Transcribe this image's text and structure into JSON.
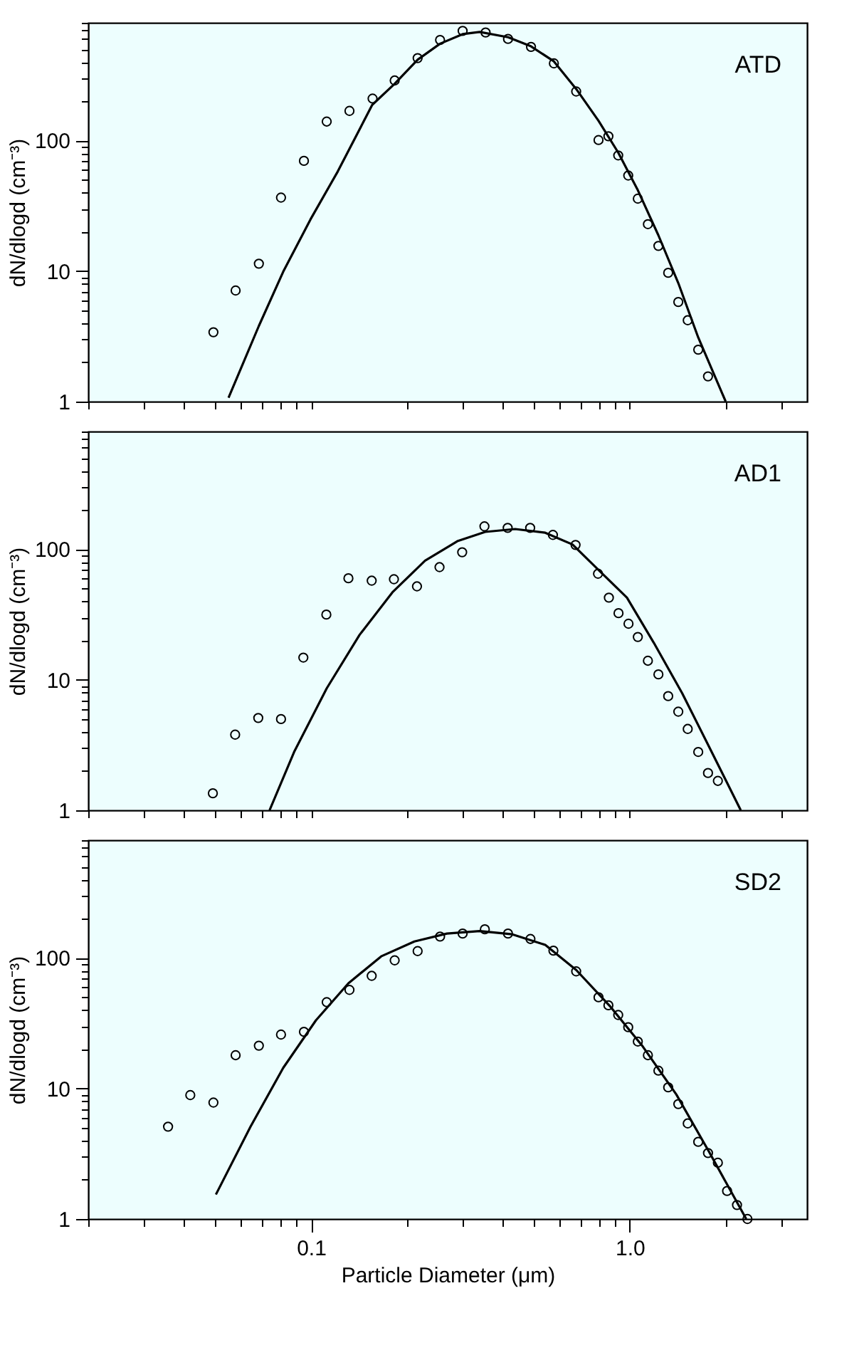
{
  "chart_data": [
    {
      "type": "scatter",
      "ylabel": "dN/dlogd (cm⁻³)",
      "annotations": [
        "ATD"
      ],
      "log": "xy",
      "grid": false,
      "tick_labels": "y",
      "xlim": [
        0.02,
        3.6
      ],
      "ylim": [
        1,
        800
      ],
      "xticks": [
        {
          "value": 0.02,
          "label": null
        },
        {
          "value": 0.03,
          "label": null
        },
        {
          "value": 0.04,
          "label": null
        },
        {
          "value": 0.05,
          "label": null
        },
        {
          "value": 0.06,
          "label": null
        },
        {
          "value": 0.07,
          "label": null
        },
        {
          "value": 0.08,
          "label": null
        },
        {
          "value": 0.09,
          "label": null
        },
        {
          "value": 0.1,
          "label": null
        },
        {
          "value": 0.2,
          "label": null
        },
        {
          "value": 0.3,
          "label": null
        },
        {
          "value": 0.4,
          "label": null
        },
        {
          "value": 0.5,
          "label": null
        },
        {
          "value": 0.6,
          "label": null
        },
        {
          "value": 0.7,
          "label": null
        },
        {
          "value": 0.8,
          "label": null
        },
        {
          "value": 0.9,
          "label": null
        },
        {
          "value": 1,
          "label": null
        },
        {
          "value": 2,
          "label": null
        },
        {
          "value": 3,
          "label": null
        }
      ],
      "yticks": [
        1,
        {
          "value": 2,
          "label": null
        },
        {
          "value": 3,
          "label": null
        },
        {
          "value": 4,
          "label": null
        },
        {
          "value": 5,
          "label": null
        },
        {
          "value": 6,
          "label": null
        },
        {
          "value": 7,
          "label": null
        },
        {
          "value": 8,
          "label": null
        },
        {
          "value": 9,
          "label": null
        },
        10,
        {
          "value": 20,
          "label": null
        },
        {
          "value": 30,
          "label": null
        },
        {
          "value": 40,
          "label": null
        },
        {
          "value": 50,
          "label": null
        },
        {
          "value": 60,
          "label": null
        },
        {
          "value": 70,
          "label": null
        },
        {
          "value": 80,
          "label": null
        },
        {
          "value": 90,
          "label": null
        },
        100,
        {
          "value": 200,
          "label": null
        },
        {
          "value": 300,
          "label": null
        },
        {
          "value": 400,
          "label": null
        },
        {
          "value": 500,
          "label": null
        },
        {
          "value": 600,
          "label": null
        },
        {
          "value": 700,
          "label": null
        },
        {
          "value": 800,
          "label": null
        }
      ],
      "series": [
        {
          "marker": "circle",
          "color": "#000000",
          "x": [
            0.0494,
            0.058,
            0.0686,
            0.0805,
            0.095,
            0.112,
            0.132,
            0.156,
            0.183,
            0.216,
            0.254,
            0.299,
            0.353,
            0.415,
            0.49,
            0.578,
            0.679,
            0.798,
            0.857,
            0.92,
            0.989,
            1.06,
            1.14,
            1.23,
            1.32,
            1.42,
            1.52,
            1.64,
            1.76
          ],
          "values": [
            3.4,
            7.1,
            11.4,
            36.6,
            70,
            140,
            169,
            210,
            289,
            429,
            591,
            693,
            674,
            602,
            523,
            391,
            238,
            101,
            108,
            77,
            54,
            35.9,
            22.9,
            15.6,
            9.7,
            5.8,
            4.2,
            2.5,
            1.56
          ]
        },
        {
          "type": "line",
          "color": "#000000",
          "x": [
            0.0551,
            0.0686,
            0.0818,
            0.0996,
            0.1213,
            0.1556,
            0.183,
            0.216,
            0.254,
            0.299,
            0.338,
            0.415,
            0.49,
            0.578,
            0.679,
            0.798,
            0.92,
            1.06,
            1.23,
            1.42,
            1.64,
            2.0
          ],
          "values": [
            1.07,
            3.8,
            9.9,
            24.9,
            58,
            188,
            273,
            417,
            553,
            655,
            680,
            620,
            528,
            405,
            249,
            142,
            81,
            41.7,
            18.8,
            8.1,
            3.1,
            1.0
          ]
        }
      ]
    },
    {
      "type": "scatter",
      "ylabel": "dN/dlogd (cm⁻³)",
      "annotations": [
        "AD1"
      ],
      "log": "xy",
      "grid": false,
      "tick_labels": "y",
      "xlim": [
        0.02,
        3.6
      ],
      "ylim": [
        1,
        800
      ],
      "xticks": [
        {
          "value": 0.02,
          "label": null
        },
        {
          "value": 0.03,
          "label": null
        },
        {
          "value": 0.04,
          "label": null
        },
        {
          "value": 0.05,
          "label": null
        },
        {
          "value": 0.06,
          "label": null
        },
        {
          "value": 0.07,
          "label": null
        },
        {
          "value": 0.08,
          "label": null
        },
        {
          "value": 0.09,
          "label": null
        },
        {
          "value": 0.1,
          "label": null
        },
        {
          "value": 0.2,
          "label": null
        },
        {
          "value": 0.3,
          "label": null
        },
        {
          "value": 0.4,
          "label": null
        },
        {
          "value": 0.5,
          "label": null
        },
        {
          "value": 0.6,
          "label": null
        },
        {
          "value": 0.7,
          "label": null
        },
        {
          "value": 0.8,
          "label": null
        },
        {
          "value": 0.9,
          "label": null
        },
        {
          "value": 1,
          "label": null
        },
        {
          "value": 2,
          "label": null
        },
        {
          "value": 3,
          "label": null
        }
      ],
      "yticks": [
        1,
        {
          "value": 2,
          "label": null
        },
        {
          "value": 3,
          "label": null
        },
        {
          "value": 4,
          "label": null
        },
        {
          "value": 5,
          "label": null
        },
        {
          "value": 6,
          "label": null
        },
        {
          "value": 7,
          "label": null
        },
        {
          "value": 8,
          "label": null
        },
        {
          "value": 9,
          "label": null
        },
        10,
        {
          "value": 20,
          "label": null
        },
        {
          "value": 30,
          "label": null
        },
        {
          "value": 40,
          "label": null
        },
        {
          "value": 50,
          "label": null
        },
        {
          "value": 60,
          "label": null
        },
        {
          "value": 70,
          "label": null
        },
        {
          "value": 80,
          "label": null
        },
        {
          "value": 90,
          "label": null
        },
        100,
        {
          "value": 200,
          "label": null
        },
        {
          "value": 300,
          "label": null
        },
        {
          "value": 400,
          "label": null
        },
        {
          "value": 500,
          "label": null
        },
        {
          "value": 600,
          "label": null
        },
        {
          "value": 700,
          "label": null
        },
        {
          "value": 800,
          "label": null
        }
      ],
      "series": [
        {
          "marker": "circle",
          "color": "#000000",
          "x": [
            0.0492,
            0.0578,
            0.0683,
            0.0805,
            0.0946,
            0.1117,
            0.131,
            0.155,
            0.182,
            0.215,
            0.253,
            0.298,
            0.35,
            0.414,
            0.487,
            0.574,
            0.676,
            0.795,
            0.86,
            0.922,
            0.991,
            1.06,
            1.14,
            1.23,
            1.32,
            1.42,
            1.52,
            1.64,
            1.76,
            1.89
          ],
          "values": [
            1.35,
            3.8,
            5.1,
            5.0,
            14.8,
            31.6,
            60,
            57.5,
            59,
            52,
            73,
            95,
            150,
            146,
            146,
            129,
            108,
            65,
            42.6,
            32.4,
            26.9,
            21.3,
            14.0,
            11.0,
            7.5,
            5.7,
            4.2,
            2.8,
            1.93,
            1.68
          ]
        },
        {
          "type": "line",
          "color": "#000000",
          "x": [
            0.0741,
            0.0885,
            0.112,
            0.142,
            0.18,
            0.228,
            0.289,
            0.352,
            0.437,
            0.543,
            0.661,
            0.805,
            0.98,
            1.19,
            1.46,
            1.77,
            2.23
          ],
          "values": [
            1.0,
            2.8,
            8.6,
            22.1,
            46.8,
            82,
            116,
            136,
            143,
            134,
            109,
            68,
            42.6,
            19.2,
            7.9,
            3.1,
            1.0
          ]
        }
      ]
    },
    {
      "type": "scatter",
      "xlabel": "Particle Diameter (μm)",
      "ylabel": "dN/dlogd (cm⁻³)",
      "annotations": [
        "SD2"
      ],
      "log": "xy",
      "grid": false,
      "xlim": [
        0.02,
        3.6
      ],
      "ylim": [
        1,
        800
      ],
      "xticks": [
        {
          "value": 0.02,
          "label": null
        },
        {
          "value": 0.03,
          "label": null
        },
        {
          "value": 0.04,
          "label": null
        },
        {
          "value": 0.05,
          "label": null
        },
        {
          "value": 0.06,
          "label": null
        },
        {
          "value": 0.07,
          "label": null
        },
        {
          "value": 0.08,
          "label": null
        },
        {
          "value": 0.09,
          "label": null
        },
        0.1,
        {
          "value": 0.2,
          "label": null
        },
        {
          "value": 0.3,
          "label": null
        },
        {
          "value": 0.4,
          "label": null
        },
        {
          "value": 0.5,
          "label": null
        },
        {
          "value": 0.6,
          "label": null
        },
        {
          "value": 0.7,
          "label": null
        },
        {
          "value": 0.8,
          "label": null
        },
        {
          "value": 0.9,
          "label": null
        },
        {
          "value": 1,
          "label": "1.0"
        },
        {
          "value": 2,
          "label": null
        },
        {
          "value": 3,
          "label": null
        }
      ],
      "yticks": [
        1,
        {
          "value": 2,
          "label": null
        },
        {
          "value": 3,
          "label": null
        },
        {
          "value": 4,
          "label": null
        },
        {
          "value": 5,
          "label": null
        },
        {
          "value": 6,
          "label": null
        },
        {
          "value": 7,
          "label": null
        },
        {
          "value": 8,
          "label": null
        },
        {
          "value": 9,
          "label": null
        },
        10,
        {
          "value": 20,
          "label": null
        },
        {
          "value": 30,
          "label": null
        },
        {
          "value": 40,
          "label": null
        },
        {
          "value": 50,
          "label": null
        },
        {
          "value": 60,
          "label": null
        },
        {
          "value": 70,
          "label": null
        },
        {
          "value": 80,
          "label": null
        },
        {
          "value": 90,
          "label": null
        },
        100,
        {
          "value": 200,
          "label": null
        },
        {
          "value": 300,
          "label": null
        },
        {
          "value": 400,
          "label": null
        },
        {
          "value": 500,
          "label": null
        },
        {
          "value": 600,
          "label": null
        },
        {
          "value": 700,
          "label": null
        },
        {
          "value": 800,
          "label": null
        }
      ],
      "series": [
        {
          "marker": "circle",
          "color": "#000000",
          "x": [
            0.0356,
            0.0418,
            0.0494,
            0.058,
            0.0686,
            0.0805,
            0.095,
            0.112,
            0.132,
            0.155,
            0.183,
            0.216,
            0.254,
            0.299,
            0.351,
            0.415,
            0.488,
            0.576,
            0.679,
            0.798,
            0.857,
            0.92,
            0.989,
            1.06,
            1.14,
            1.23,
            1.32,
            1.42,
            1.52,
            1.64,
            1.76,
            1.89,
            2.02,
            2.17,
            2.34
          ],
          "values": [
            5.1,
            8.9,
            7.8,
            18.0,
            21.3,
            25.9,
            27.2,
            45.9,
            57,
            73,
            96,
            113,
            146,
            154,
            166,
            154,
            140,
            114,
            79,
            50,
            43.4,
            36.6,
            29.5,
            22.9,
            18.0,
            13.7,
            10.2,
            7.6,
            5.4,
            3.9,
            3.2,
            2.7,
            1.64,
            1.28,
            1.0
          ]
        },
        {
          "type": "line",
          "color": "#000000",
          "x": [
            0.0503,
            0.0646,
            0.0818,
            0.1036,
            0.131,
            0.166,
            0.211,
            0.267,
            0.338,
            0.428,
            0.543,
            0.679,
            0.871,
            1.1,
            1.4,
            1.77,
            2.32
          ],
          "values": [
            1.54,
            5.1,
            14.4,
            33.3,
            64,
            103,
            134,
            154,
            161,
            152,
            126,
            81,
            42.2,
            20.9,
            9.0,
            3.3,
            1.0
          ]
        }
      ]
    }
  ]
}
